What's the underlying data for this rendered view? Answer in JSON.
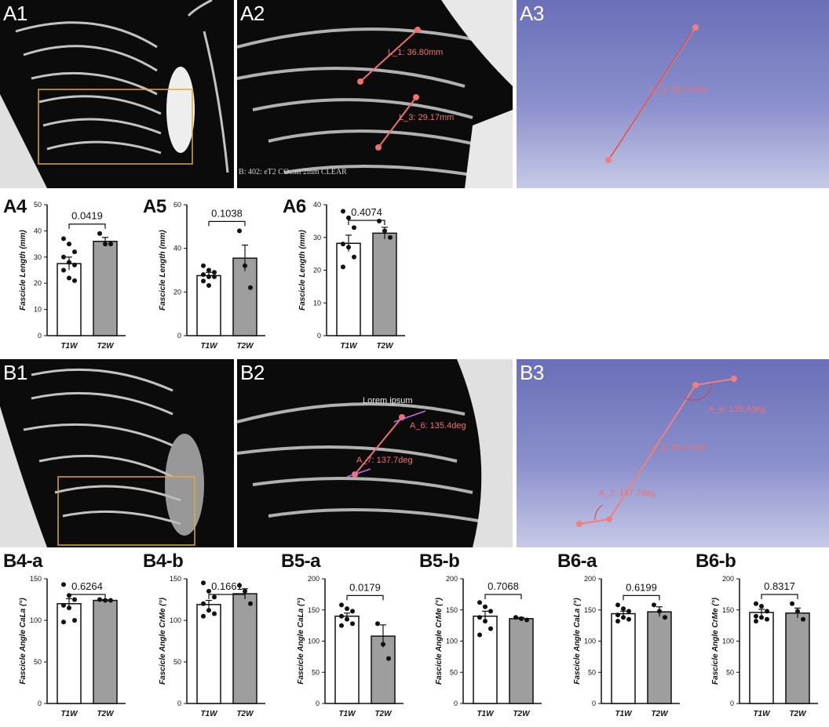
{
  "image_panels": {
    "A1": {
      "label": "A1"
    },
    "A2": {
      "label": "A2",
      "annot1": "L_1: 36.80mm",
      "annot2": "L_3: 29.17mm",
      "footer": "B: 402: eT2 CO...m 2mm CLEAR"
    },
    "A3": {
      "label": "A3",
      "annot": "L_3: 29.17mm"
    },
    "B1": {
      "label": "B1"
    },
    "B2": {
      "label": "B2",
      "lorem": "Lorem ipsum",
      "annot1": "A_6: 135.4deg",
      "annot2": "A_7: 137.7deg"
    },
    "B3": {
      "label": "B3",
      "annot1": "A_6: 135.4deg",
      "annot2": "L_3: 29.17mm",
      "annot3": "A_7: 137.7deg"
    }
  },
  "chart_data": [
    {
      "id": "A4",
      "label": "A4",
      "type": "bar",
      "categories": [
        "T1W",
        "T2W"
      ],
      "values": [
        27.5,
        36
      ],
      "errors": [
        2.5,
        1.5
      ],
      "points": [
        [
          37,
          35,
          32,
          30,
          28,
          27,
          25,
          22,
          21
        ],
        [
          39,
          35,
          35
        ]
      ],
      "ylabel": "Fascicle Length (mm)",
      "ylim": [
        0,
        50
      ],
      "yticks": [
        0,
        10,
        20,
        30,
        40,
        50
      ],
      "pvalue": "0.0419",
      "colors": [
        "#ffffff",
        "#9e9e9e"
      ]
    },
    {
      "id": "A5",
      "label": "A5",
      "type": "bar",
      "categories": [
        "T1W",
        "T2W"
      ],
      "values": [
        27.5,
        35.5
      ],
      "errors": [
        1.5,
        6
      ],
      "points": [
        [
          32,
          30,
          29,
          28,
          27,
          27,
          25,
          23
        ],
        [
          48,
          32,
          22
        ]
      ],
      "ylabel": "Fascicle Length (mm)",
      "ylim": [
        0,
        60
      ],
      "yticks": [
        0,
        20,
        40,
        60
      ],
      "pvalue": "0.1038",
      "colors": [
        "#ffffff",
        "#9e9e9e"
      ]
    },
    {
      "id": "A6",
      "label": "A6",
      "type": "bar",
      "categories": [
        "T1W",
        "T2W"
      ],
      "values": [
        28.2,
        31.3
      ],
      "errors": [
        2.5,
        1.8
      ],
      "points": [
        [
          38,
          36,
          33,
          28,
          27,
          24,
          21
        ],
        [
          35,
          32,
          30
        ]
      ],
      "ylabel": "Fascicle Length (mm)",
      "ylim": [
        0,
        40
      ],
      "yticks": [
        0,
        10,
        20,
        30,
        40
      ],
      "pvalue": "0.4074",
      "colors": [
        "#ffffff",
        "#9e9e9e"
      ]
    },
    {
      "id": "B4a",
      "label": "B4-a",
      "type": "bar",
      "categories": [
        "T1W",
        "T2W"
      ],
      "values": [
        120,
        124
      ],
      "errors": [
        6,
        1
      ],
      "points": [
        [
          143,
          130,
          125,
          118,
          115,
          100,
          98
        ],
        [
          125,
          124,
          124
        ]
      ],
      "ylabel": "Fascicle Angle CaLa (°)",
      "ylim": [
        0,
        150
      ],
      "yticks": [
        0,
        50,
        100,
        150
      ],
      "pvalue": "0.6264",
      "colors": [
        "#ffffff",
        "#9e9e9e"
      ]
    },
    {
      "id": "B4b",
      "label": "B4-b",
      "type": "bar",
      "categories": [
        "T1W",
        "T2W"
      ],
      "values": [
        119,
        132
      ],
      "errors": [
        5,
        6
      ],
      "points": [
        [
          145,
          135,
          128,
          120,
          112,
          108,
          105
        ],
        [
          142,
          135,
          120
        ]
      ],
      "ylabel": "Fascicle Angle CrMe (°)",
      "ylim": [
        0,
        150
      ],
      "yticks": [
        0,
        50,
        100,
        150
      ],
      "pvalue": "0.1661",
      "colors": [
        "#ffffff",
        "#9e9e9e"
      ]
    },
    {
      "id": "B5a",
      "label": "B5-a",
      "type": "bar",
      "categories": [
        "T1W",
        "T2W"
      ],
      "values": [
        140,
        108
      ],
      "errors": [
        5,
        18
      ],
      "points": [
        [
          158,
          152,
          148,
          140,
          135,
          128,
          125
        ],
        [
          128,
          95,
          72
        ]
      ],
      "ylabel": "Fascicle Angle CaLa (°)",
      "ylim": [
        0,
        200
      ],
      "yticks": [
        0,
        50,
        100,
        150,
        200
      ],
      "pvalue": "0.0179",
      "colors": [
        "#ffffff",
        "#9e9e9e"
      ]
    },
    {
      "id": "B5b",
      "label": "B5-b",
      "type": "bar",
      "categories": [
        "T1W",
        "T2W"
      ],
      "values": [
        140,
        136
      ],
      "errors": [
        8,
        2
      ],
      "points": [
        [
          162,
          155,
          148,
          138,
          132,
          120,
          110
        ],
        [
          138,
          136,
          134
        ]
      ],
      "ylabel": "Fascicle Angle CrMe (°)",
      "ylim": [
        0,
        200
      ],
      "yticks": [
        0,
        50,
        100,
        150,
        200
      ],
      "pvalue": "0.7068",
      "colors": [
        "#ffffff",
        "#9e9e9e"
      ]
    },
    {
      "id": "B6a",
      "label": "B6-a",
      "type": "bar",
      "categories": [
        "T1W",
        "T2W"
      ],
      "values": [
        144,
        147
      ],
      "errors": [
        4,
        8
      ],
      "points": [
        [
          158,
          152,
          148,
          142,
          138,
          135,
          132
        ],
        [
          158,
          148,
          138
        ]
      ],
      "ylabel": "Fascicle Angle CaLa (°)",
      "ylim": [
        0,
        200
      ],
      "yticks": [
        0,
        50,
        100,
        150,
        200
      ],
      "pvalue": "0.6199",
      "colors": [
        "#ffffff",
        "#9e9e9e"
      ]
    },
    {
      "id": "B6b",
      "label": "B6-b",
      "type": "bar",
      "categories": [
        "T1W",
        "T2W"
      ],
      "values": [
        146,
        145
      ],
      "errors": [
        5,
        8
      ],
      "points": [
        [
          160,
          156,
          148,
          140,
          138,
          135,
          132
        ],
        [
          160,
          148,
          135
        ]
      ],
      "ylabel": "Fascicle Angle CrMe (°)",
      "ylim": [
        0,
        200
      ],
      "yticks": [
        0,
        50,
        100,
        150,
        200
      ],
      "pvalue": "0.8317",
      "colors": [
        "#ffffff",
        "#9e9e9e"
      ]
    }
  ]
}
